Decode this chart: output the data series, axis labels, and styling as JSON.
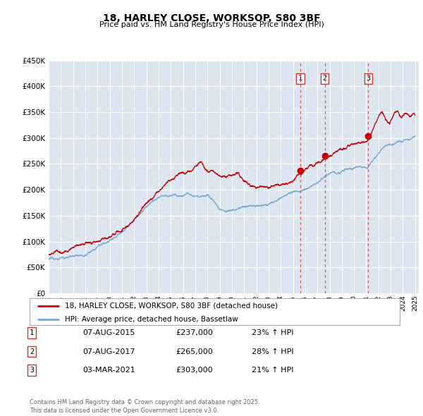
{
  "title": "18, HARLEY CLOSE, WORKSOP, S80 3BF",
  "subtitle": "Price paid vs. HM Land Registry's House Price Index (HPI)",
  "property_color": "#cc0000",
  "hpi_color": "#7aa8d4",
  "background_color": "#dde6f0",
  "plot_bg_color": "#dde6f0",
  "grid_color": "#ffffff",
  "ylim": [
    0,
    450000
  ],
  "yticks": [
    0,
    50000,
    100000,
    150000,
    200000,
    250000,
    300000,
    350000,
    400000,
    450000
  ],
  "ytick_labels": [
    "£0",
    "£50K",
    "£100K",
    "£150K",
    "£200K",
    "£250K",
    "£300K",
    "£350K",
    "£400K",
    "£450K"
  ],
  "legend_property": "18, HARLEY CLOSE, WORKSOP, S80 3BF (detached house)",
  "legend_hpi": "HPI: Average price, detached house, Bassetlaw",
  "transactions": [
    {
      "num": 1,
      "date": "07-AUG-2015",
      "price": "£237,000",
      "pct": "23%",
      "year": 2015.6
    },
    {
      "num": 2,
      "date": "07-AUG-2017",
      "price": "£265,000",
      "pct": "28%",
      "year": 2017.6
    },
    {
      "num": 3,
      "date": "03-MAR-2021",
      "price": "£303,000",
      "pct": "21%",
      "year": 2021.17
    }
  ],
  "footer": "Contains HM Land Registry data © Crown copyright and database right 2025.\nThis data is licensed under the Open Government Licence v3.0.",
  "marker_points_property": [
    [
      2015.6,
      237000
    ],
    [
      2017.6,
      265000
    ],
    [
      2021.17,
      303000
    ]
  ]
}
